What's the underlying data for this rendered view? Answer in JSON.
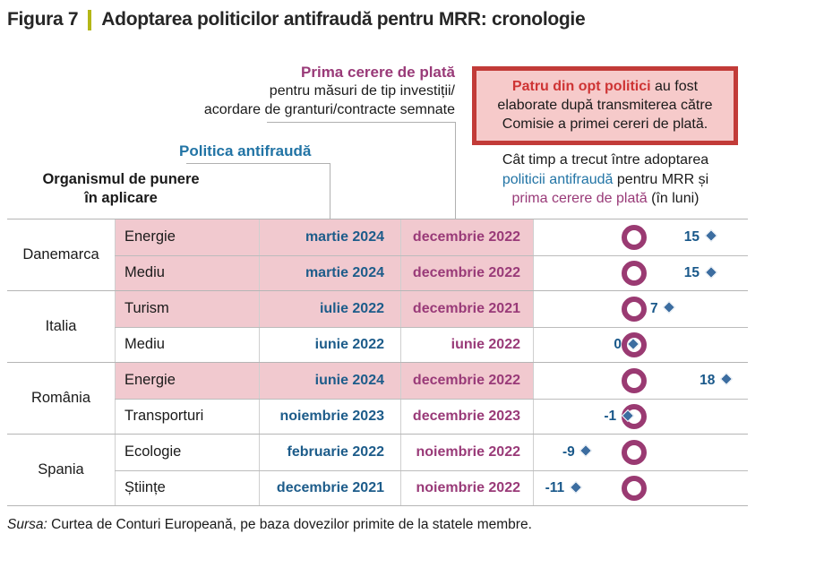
{
  "figure": {
    "label": "Figura 7",
    "title": "Adoptarea politicilor antifraudă pentru MRR: cronologie"
  },
  "header": {
    "first_payment": {
      "line1": "Prima cerere de plată",
      "line2": "pentru măsuri de tip investiții/",
      "line3": "acordare de granturi/contracte semnate"
    },
    "policy_label": "Politica antifraudă",
    "body_label_line1": "Organismul de punere",
    "body_label_line2": "în aplicare"
  },
  "callout": {
    "bold": "Patru din opt politici",
    "rest_line1": " au fost",
    "line2": "elaborate după transmiterea către",
    "line3": "Comisie a primei cereri de plată."
  },
  "question": {
    "line1": "Cât timp a trecut între adoptarea",
    "line2_blue": "politicii antifraudă",
    "line2_rest": " pentru MRR și",
    "line3_magenta": "prima cerere de plată",
    "line3_rest": " (în luni)"
  },
  "table": {
    "groups": [
      {
        "country": "Danemarca",
        "rows": [
          {
            "sector": "Energie",
            "policy_date": "martie 2024",
            "payment_date": "decembrie 2022",
            "months": 15,
            "months_label": "15",
            "highlight": true
          },
          {
            "sector": "Mediu",
            "policy_date": "martie 2024",
            "payment_date": "decembrie 2022",
            "months": 15,
            "months_label": "15",
            "highlight": true
          }
        ]
      },
      {
        "country": "Italia",
        "rows": [
          {
            "sector": "Turism",
            "policy_date": "iulie 2022",
            "payment_date": "decembrie 2021",
            "months": 7,
            "months_label": "7",
            "highlight": true
          },
          {
            "sector": "Mediu",
            "policy_date": "iunie 2022",
            "payment_date": "iunie 2022",
            "months": 0,
            "months_label": "0",
            "highlight": false
          }
        ]
      },
      {
        "country": "România",
        "rows": [
          {
            "sector": "Energie",
            "policy_date": "iunie 2024",
            "payment_date": "decembrie 2022",
            "months": 18,
            "months_label": "18",
            "highlight": true
          },
          {
            "sector": "Transporturi",
            "policy_date": "noiembrie 2023",
            "payment_date": "decembrie 2023",
            "months": -1,
            "months_label": "-1",
            "highlight": false
          }
        ]
      },
      {
        "country": "Spania",
        "rows": [
          {
            "sector": "Ecologie",
            "policy_date": "februarie 2022",
            "payment_date": "noiembrie 2022",
            "months": -9,
            "months_label": "-9",
            "highlight": false
          },
          {
            "sector": "Științe",
            "policy_date": "decembrie 2021",
            "payment_date": "noiembrie 2022",
            "months": -11,
            "months_label": "-11",
            "highlight": false
          }
        ]
      }
    ]
  },
  "footer": {
    "source_label": "Sursa:",
    "source_text": " Curtea de Conturi Europeană, pe baza dovezilor primite de la statele membre."
  },
  "colors": {
    "magenta": "#993a78",
    "blue_header": "#2274a5",
    "blue_date": "#1d5c8a",
    "diamond_blue": "#3c6da0",
    "pink_row": "#f1c9cf",
    "callout_border": "#c23b38",
    "callout_bg": "#f6caca",
    "callout_red_text": "#ce3434",
    "title_separator": "#b4b717",
    "grid": "#b5b5b5"
  },
  "chart_data": {
    "type": "scatter",
    "title": "Figura 7 | Adoptarea politicilor antifraudă pentru MRR: cronologie",
    "xlabel": "Cât timp a trecut între adoptarea politicii antifraudă pentru MRR și prima cerere de plată (în luni)",
    "categories": [
      "Danemarca – Energie",
      "Danemarca – Mediu",
      "Italia – Turism",
      "Italia – Mediu",
      "România – Energie",
      "România – Transporturi",
      "Spania – Ecologie",
      "Spania – Științe"
    ],
    "series": [
      {
        "name": "Luni între adoptarea politicii antifraudă și prima cerere de plată",
        "values": [
          15,
          15,
          7,
          0,
          18,
          -1,
          -9,
          -11
        ]
      }
    ],
    "policy_dates": [
      "martie 2024",
      "martie 2024",
      "iulie 2022",
      "iunie 2022",
      "iunie 2024",
      "noiembrie 2023",
      "februarie 2022",
      "decembrie 2021"
    ],
    "payment_dates": [
      "decembrie 2022",
      "decembrie 2022",
      "decembrie 2021",
      "iunie 2022",
      "decembrie 2022",
      "decembrie 2023",
      "noiembrie 2022",
      "noiembrie 2022"
    ],
    "highlighted_after_payment": [
      true,
      true,
      true,
      false,
      true,
      false,
      false,
      false
    ],
    "markers": {
      "diamond": "politica antifraudă",
      "circle": "prima cerere de plată (reper la 0)"
    },
    "xlim": [
      -20,
      23
    ],
    "grid": false,
    "annotation": "Patru din opt politici au fost elaborate după transmiterea către Comisie a primei cereri de plată."
  }
}
